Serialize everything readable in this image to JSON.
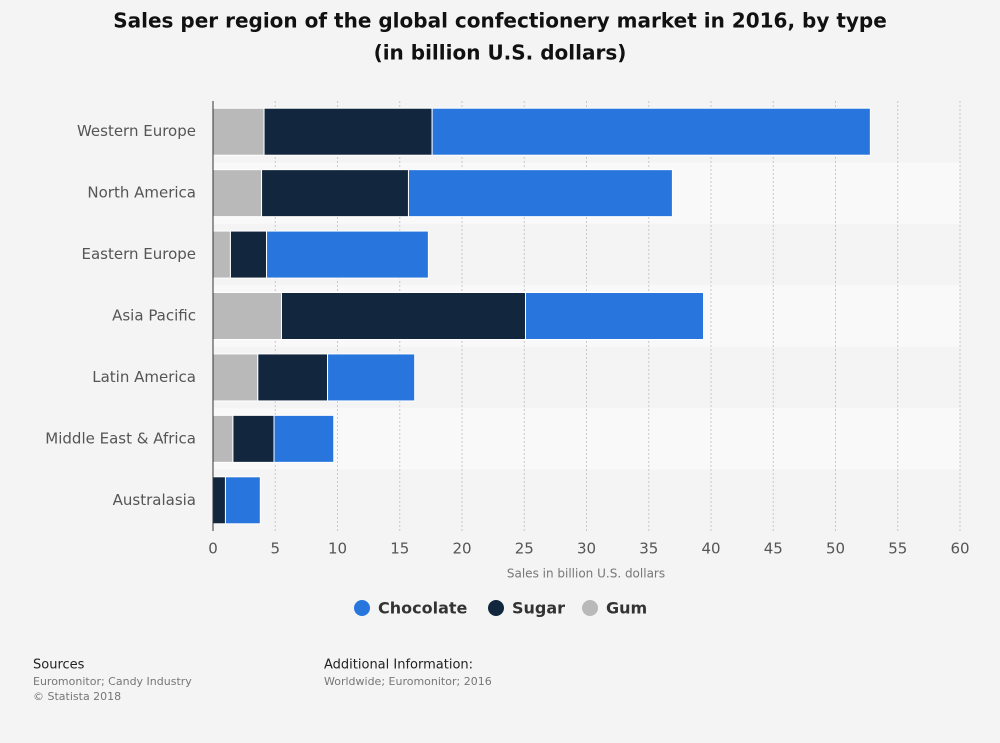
{
  "chart_data": {
    "type": "stacked-barh",
    "title": [
      "Sales per region of the global confectionery market in 2016, by type",
      "(in billion U.S. dollars)"
    ],
    "categories": [
      "Western Europe",
      "North America",
      "Eastern Europe",
      "Asia Pacific",
      "Latin America",
      "Middle East & Africa",
      "Australasia"
    ],
    "series": [
      {
        "name": "Chocolate",
        "color": "#2876dd",
        "values": [
          35.2,
          21.2,
          13.0,
          14.3,
          7.0,
          4.8,
          2.8
        ]
      },
      {
        "name": "Sugar",
        "color": "#12263e",
        "values": [
          13.5,
          11.8,
          2.9,
          19.6,
          5.6,
          3.3,
          1.0
        ]
      },
      {
        "name": "Gum",
        "color": "#b9b9b9",
        "values": [
          4.1,
          3.9,
          1.4,
          5.5,
          3.6,
          1.6,
          0
        ]
      }
    ],
    "xlabel": "Sales in billion U.S. dollars",
    "xlim": [
      0,
      60
    ],
    "xticks": [
      0,
      5,
      10,
      15,
      20,
      25,
      30,
      35,
      40,
      45,
      50,
      55,
      60
    ],
    "grid": true
  },
  "footer": {
    "sources_title": "Sources",
    "sources": [
      "Euromonitor; Candy Industry",
      "© Statista 2018"
    ],
    "info_title": "Additional Information:",
    "info": [
      "Worldwide; Euromonitor; 2016"
    ]
  }
}
